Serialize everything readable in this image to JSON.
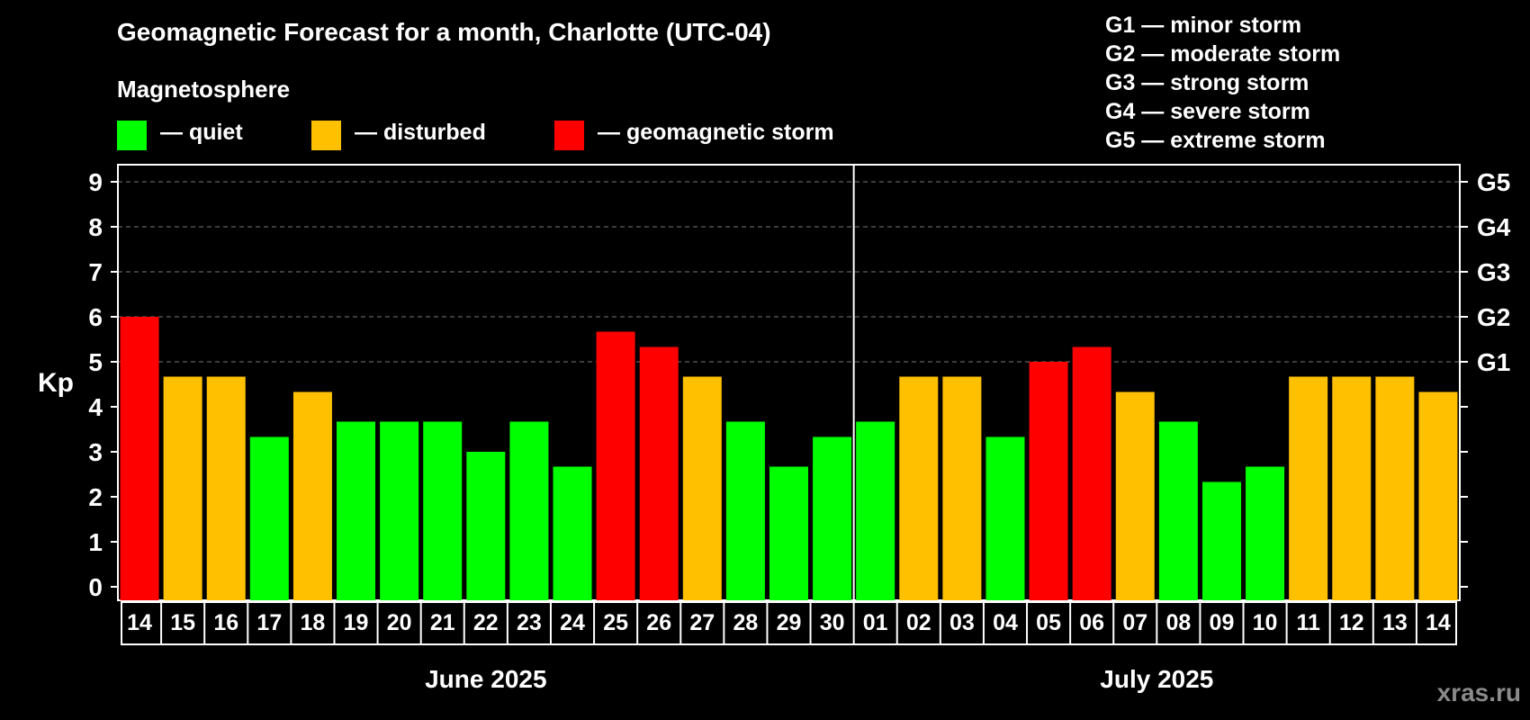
{
  "header": {
    "title": "Geomagnetic Forecast for a month, Charlotte (UTC-04)",
    "legend_title": "Magnetosphere",
    "legend": [
      {
        "label": "— quiet",
        "color": "#00ff00"
      },
      {
        "label": "— disturbed",
        "color": "#ffc000"
      },
      {
        "label": "— geomagnetic storm",
        "color": "#ff0000"
      }
    ],
    "storm_scale": [
      "G1 — minor storm",
      "G2 — moderate storm",
      "G3 — strong storm",
      "G4 — severe storm",
      "G5 — extreme storm"
    ]
  },
  "watermark": "xras.ru",
  "chart_data": {
    "type": "bar",
    "ylabel": "Kp",
    "ylim": [
      0,
      9
    ],
    "yticks": [
      "0",
      "1",
      "2",
      "3",
      "4",
      "5",
      "6",
      "7",
      "8",
      "9"
    ],
    "grid": "dashed at Kp 5-9",
    "right_axis": [
      {
        "value": 5,
        "label": "G1"
      },
      {
        "value": 6,
        "label": "G2"
      },
      {
        "value": 7,
        "label": "G3"
      },
      {
        "value": 8,
        "label": "G4"
      },
      {
        "value": 9,
        "label": "G5"
      }
    ],
    "colors": {
      "quiet": "#00ff00",
      "disturbed": "#ffc000",
      "storm": "#ff0000"
    },
    "months": [
      {
        "label": "June 2025",
        "days": 17
      },
      {
        "label": "July 2025",
        "days": 14
      }
    ],
    "categories": [
      "14",
      "15",
      "16",
      "17",
      "18",
      "19",
      "20",
      "21",
      "22",
      "23",
      "24",
      "25",
      "26",
      "27",
      "28",
      "29",
      "30",
      "01",
      "02",
      "03",
      "04",
      "05",
      "06",
      "07",
      "08",
      "09",
      "10",
      "11",
      "12",
      "13",
      "14"
    ],
    "values": [
      6.0,
      4.67,
      4.67,
      3.33,
      4.33,
      3.67,
      3.67,
      3.67,
      3.0,
      3.67,
      2.67,
      5.67,
      5.33,
      4.67,
      3.67,
      2.67,
      3.33,
      3.67,
      4.67,
      4.67,
      3.33,
      5.0,
      5.33,
      4.33,
      3.67,
      2.33,
      2.67,
      4.67,
      4.67,
      4.67,
      4.33
    ],
    "levels": [
      "storm",
      "disturbed",
      "disturbed",
      "quiet",
      "disturbed",
      "quiet",
      "quiet",
      "quiet",
      "quiet",
      "quiet",
      "quiet",
      "storm",
      "storm",
      "disturbed",
      "quiet",
      "quiet",
      "quiet",
      "quiet",
      "disturbed",
      "disturbed",
      "quiet",
      "storm",
      "storm",
      "disturbed",
      "quiet",
      "quiet",
      "quiet",
      "disturbed",
      "disturbed",
      "disturbed",
      "disturbed"
    ]
  }
}
